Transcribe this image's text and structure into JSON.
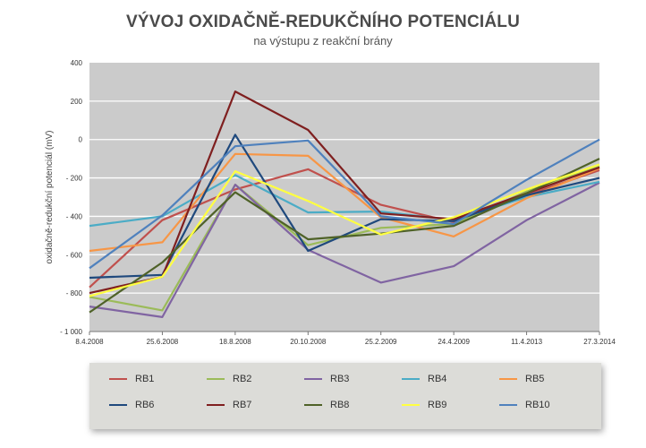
{
  "chart_data": {
    "type": "line",
    "title": "VÝVOJ OXIDAČNĚ-REDUKČNÍHO POTENCIÁLU",
    "subtitle": "na výstupu z reakční brány",
    "ylabel": "oxidačně-redukční potenciál (mV)",
    "xlabel": "",
    "ylim": [
      -1000,
      400
    ],
    "y_ticks": [
      400,
      200,
      0,
      -200,
      -400,
      -600,
      -800,
      -1000
    ],
    "y_tick_labels": [
      "400",
      "200",
      "0",
      "- 200",
      "- 400",
      "- 600",
      "- 800",
      "- 1 000"
    ],
    "categories": [
      "8.4.2008",
      "25.6.2008",
      "18.8.2008",
      "20.10.2008",
      "25.2.2009",
      "24.4.2009",
      "11.4.2013",
      "27.3.2014"
    ],
    "grid": true,
    "legend_position": "bottom",
    "series": [
      {
        "name": "RB1",
        "color": "#c0504d",
        "values": [
          -770,
          -420,
          -260,
          -155,
          -340,
          -430,
          -290,
          -160
        ]
      },
      {
        "name": "RB2",
        "color": "#9bbb59",
        "values": [
          -820,
          -890,
          -235,
          -550,
          -460,
          -440,
          -270,
          -140
        ]
      },
      {
        "name": "RB3",
        "color": "#8064a2",
        "values": [
          -870,
          -925,
          -235,
          -575,
          -745,
          -660,
          -420,
          -225
        ]
      },
      {
        "name": "RB4",
        "color": "#4bacc6",
        "values": [
          -450,
          -400,
          -185,
          -380,
          -375,
          -420,
          -300,
          -220
        ]
      },
      {
        "name": "RB5",
        "color": "#f79646",
        "values": [
          -580,
          -535,
          -75,
          -85,
          -405,
          -505,
          -305,
          -150
        ]
      },
      {
        "name": "RB6",
        "color": "#1f497d",
        "values": [
          -720,
          -705,
          25,
          -580,
          -415,
          -425,
          -290,
          -200
        ]
      },
      {
        "name": "RB7",
        "color": "#7f1f1f",
        "values": [
          -800,
          -715,
          250,
          50,
          -385,
          -415,
          -280,
          -145
        ]
      },
      {
        "name": "RB8",
        "color": "#4f6228",
        "values": [
          -900,
          -640,
          -275,
          -520,
          -490,
          -450,
          -280,
          -100
        ]
      },
      {
        "name": "RB9",
        "color": "#ffff40",
        "values": [
          -815,
          -715,
          -165,
          -320,
          -495,
          -405,
          -260,
          -130
        ]
      },
      {
        "name": "RB10",
        "color": "#4f81bd",
        "values": [
          -670,
          -395,
          -35,
          -5,
          -400,
          -440,
          -210,
          0
        ]
      }
    ]
  }
}
